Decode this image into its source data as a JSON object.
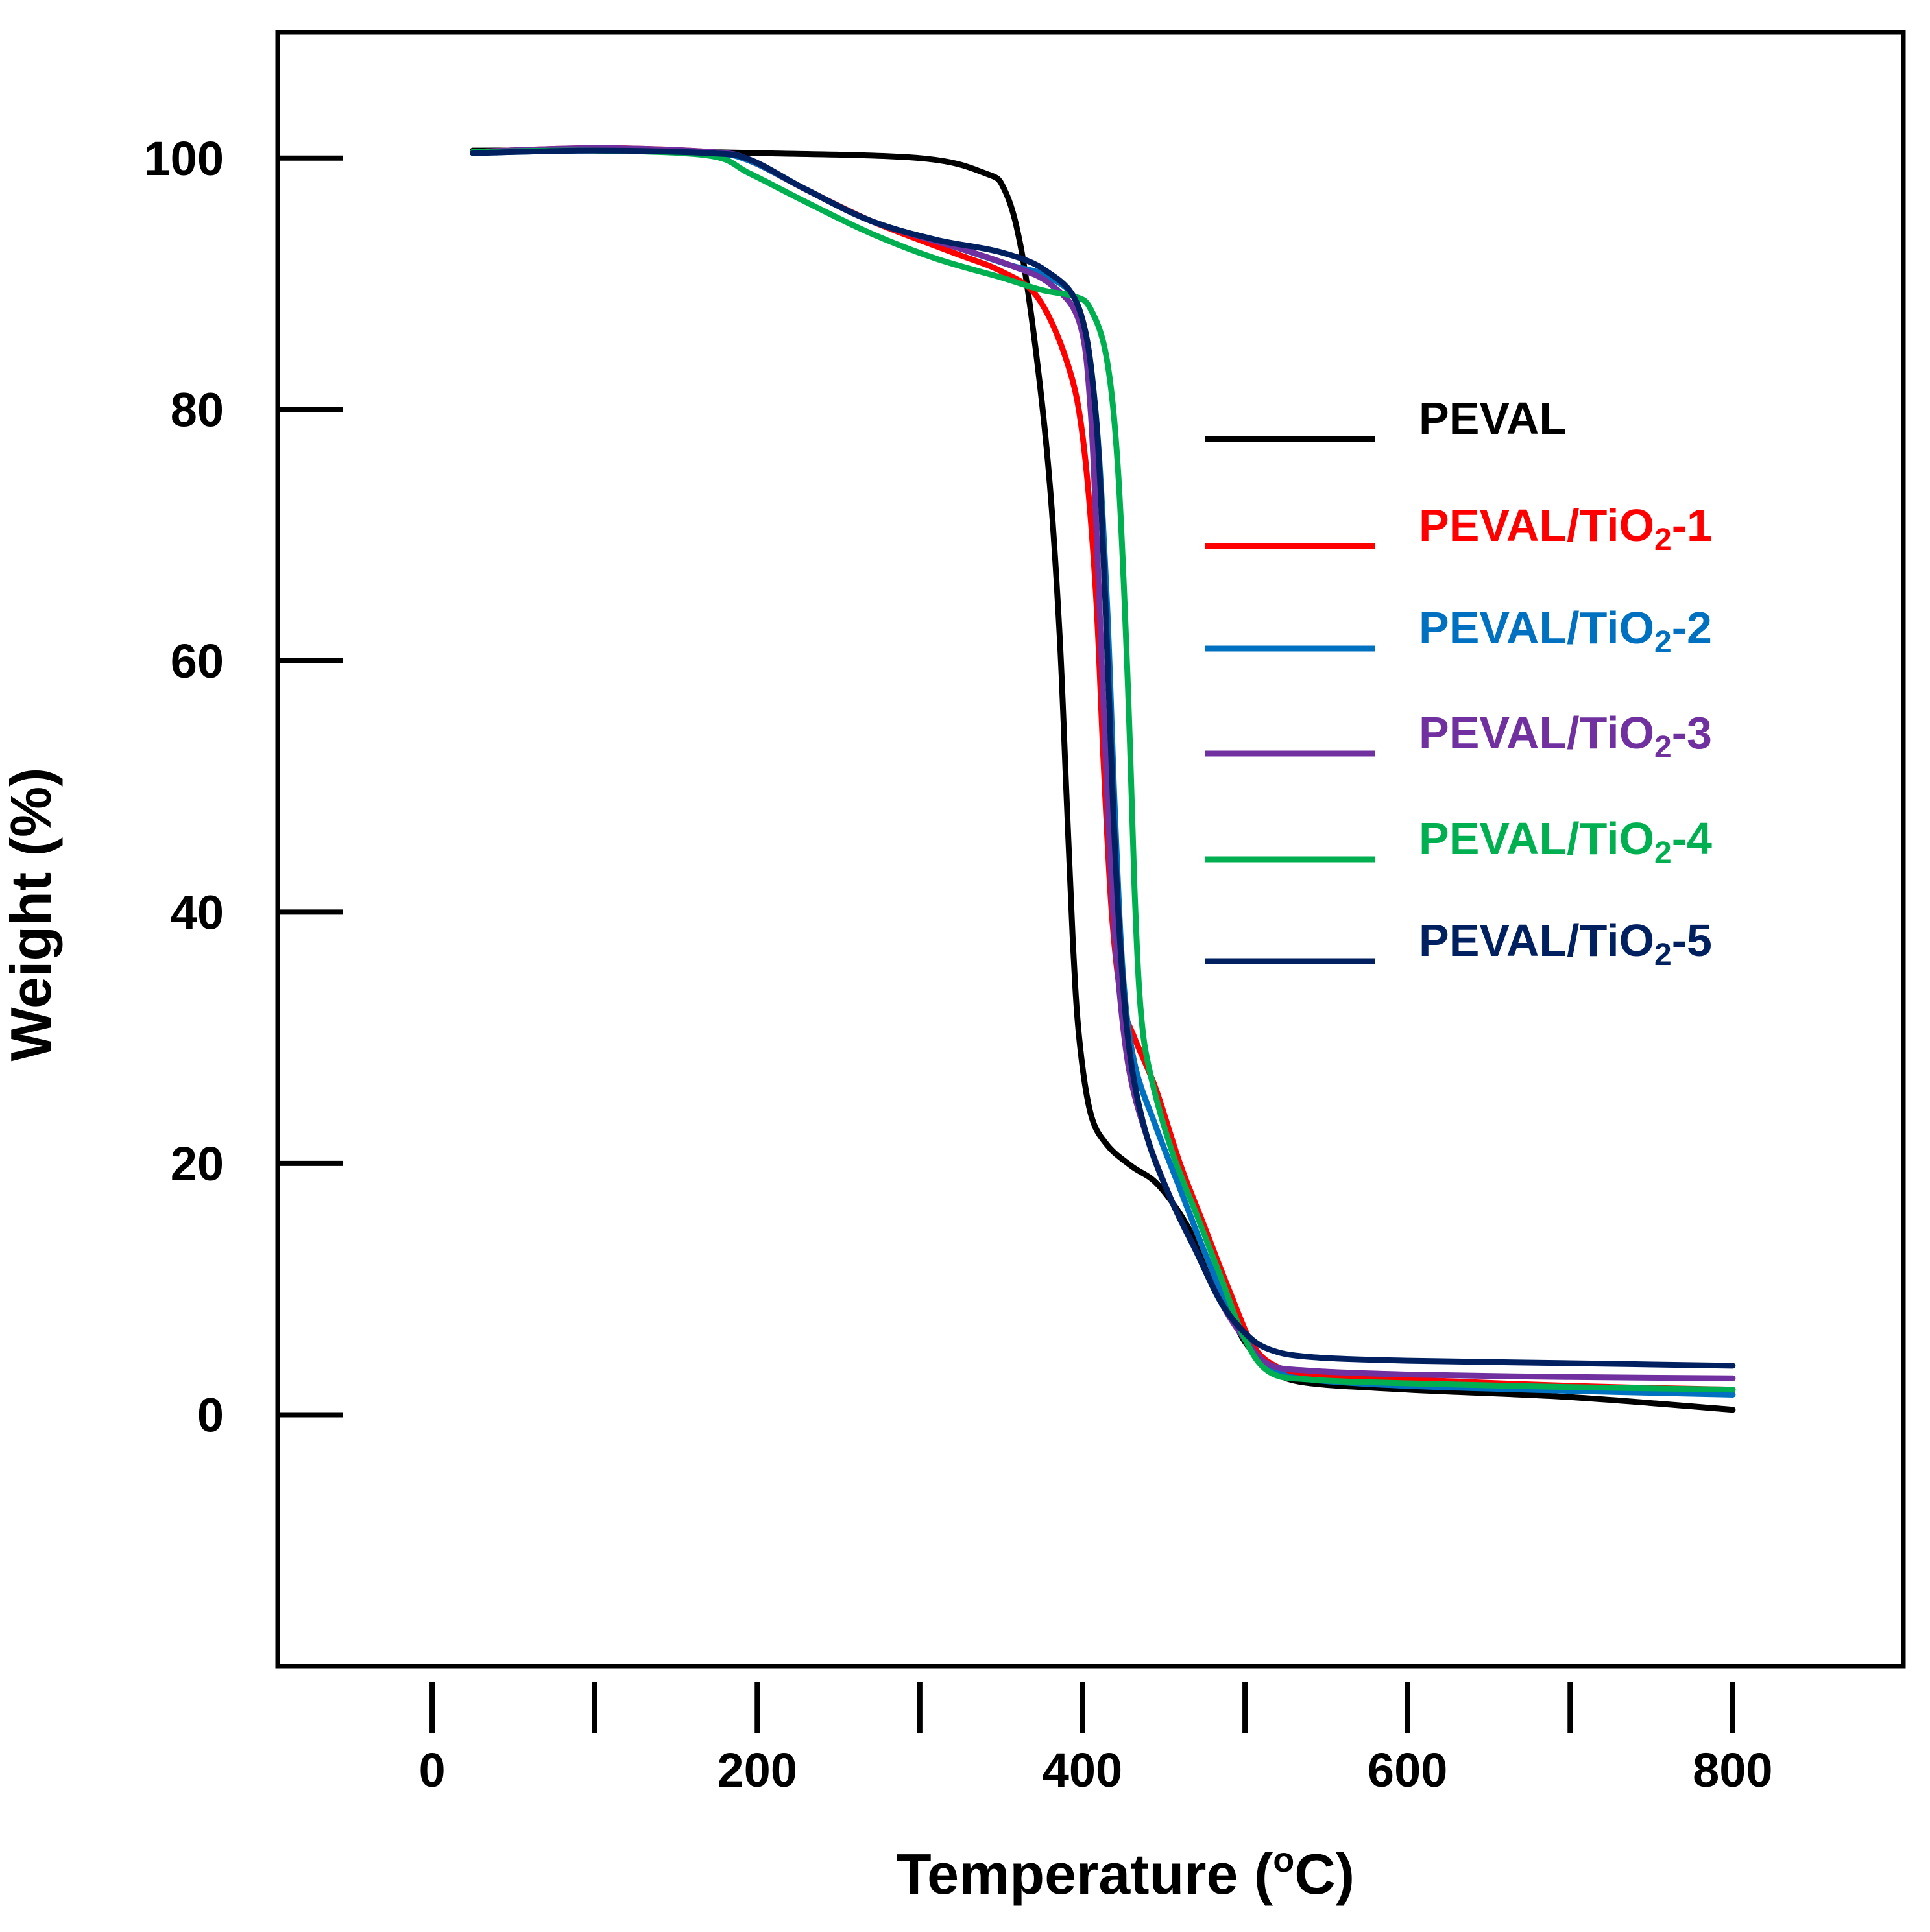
{
  "chart_data": {
    "type": "line",
    "title": "",
    "xlabel_main": "Temperature (",
    "xlabel_sup": "o",
    "xlabel_end": "C)",
    "ylabel": "Weight (%)",
    "xlim": [
      -95,
      905
    ],
    "ylim": [
      -20,
      110
    ],
    "xticks": [
      0,
      200,
      400,
      600,
      800
    ],
    "xticks_minor": [
      100,
      300,
      500,
      700
    ],
    "yticks": [
      0,
      20,
      40,
      60,
      80,
      100
    ],
    "grid": false,
    "legend_position": "right",
    "series": [
      {
        "name": "PEVAL",
        "label_main": "PEVAL",
        "label_sub": "",
        "label_end": "",
        "color": "#000000",
        "points": [
          [
            25,
            100.6
          ],
          [
            100,
            100.6
          ],
          [
            200,
            100.4
          ],
          [
            300,
            100.0
          ],
          [
            340,
            98.8
          ],
          [
            352,
            97.5
          ],
          [
            362,
            93
          ],
          [
            372,
            84
          ],
          [
            380,
            74
          ],
          [
            386,
            62
          ],
          [
            390,
            50
          ],
          [
            394,
            38
          ],
          [
            398,
            30
          ],
          [
            405,
            24
          ],
          [
            415,
            21.5
          ],
          [
            430,
            19.8
          ],
          [
            445,
            18.5
          ],
          [
            460,
            16
          ],
          [
            475,
            12.5
          ],
          [
            490,
            8.5
          ],
          [
            500,
            5.8
          ],
          [
            515,
            3.8
          ],
          [
            535,
            2.6
          ],
          [
            600,
            2.0
          ],
          [
            700,
            1.4
          ],
          [
            800,
            0.4
          ]
        ]
      },
      {
        "name": "PEVAL/TiO2-1",
        "label_main": "PEVAL/TiO",
        "label_sub": "2",
        "label_end": "-1",
        "color": "#ff0000",
        "points": [
          [
            25,
            100.5
          ],
          [
            100,
            100.8
          ],
          [
            170,
            100.5
          ],
          [
            195,
            99.8
          ],
          [
            230,
            97.5
          ],
          [
            270,
            95
          ],
          [
            320,
            92.5
          ],
          [
            350,
            91
          ],
          [
            372,
            89
          ],
          [
            390,
            84
          ],
          [
            400,
            78
          ],
          [
            408,
            66
          ],
          [
            413,
            52
          ],
          [
            418,
            40
          ],
          [
            424,
            33
          ],
          [
            432,
            30
          ],
          [
            445,
            26
          ],
          [
            460,
            20
          ],
          [
            475,
            15
          ],
          [
            490,
            10
          ],
          [
            505,
            5.5
          ],
          [
            520,
            3.8
          ],
          [
            540,
            3.2
          ],
          [
            600,
            2.8
          ],
          [
            700,
            2.3
          ],
          [
            800,
            2.0
          ]
        ]
      },
      {
        "name": "PEVAL/TiO2-2",
        "label_main": "PEVAL/TiO",
        "label_sub": "2",
        "label_end": "-2",
        "color": "#0070c0",
        "points": [
          [
            25,
            100.4
          ],
          [
            100,
            100.6
          ],
          [
            170,
            100.4
          ],
          [
            195,
            99.8
          ],
          [
            230,
            97.5
          ],
          [
            270,
            95
          ],
          [
            320,
            93
          ],
          [
            355,
            91.5
          ],
          [
            380,
            90.5
          ],
          [
            398,
            88
          ],
          [
            408,
            80
          ],
          [
            415,
            65
          ],
          [
            420,
            48
          ],
          [
            425,
            35
          ],
          [
            432,
            28
          ],
          [
            445,
            23
          ],
          [
            460,
            18
          ],
          [
            475,
            13
          ],
          [
            490,
            8.5
          ],
          [
            505,
            5
          ],
          [
            520,
            3.4
          ],
          [
            540,
            2.8
          ],
          [
            600,
            2.3
          ],
          [
            700,
            1.9
          ],
          [
            800,
            1.6
          ]
        ]
      },
      {
        "name": "PEVAL/TiO2-3",
        "label_main": "PEVAL/TiO",
        "label_sub": "2",
        "label_end": "-3",
        "color": "#7030a0",
        "points": [
          [
            25,
            100.5
          ],
          [
            100,
            100.8
          ],
          [
            170,
            100.5
          ],
          [
            195,
            99.9
          ],
          [
            230,
            97.5
          ],
          [
            270,
            95
          ],
          [
            320,
            93
          ],
          [
            355,
            91.5
          ],
          [
            380,
            90
          ],
          [
            398,
            87
          ],
          [
            405,
            80
          ],
          [
            410,
            66
          ],
          [
            415,
            50
          ],
          [
            420,
            38
          ],
          [
            428,
            28
          ],
          [
            440,
            22
          ],
          [
            455,
            17
          ],
          [
            470,
            13
          ],
          [
            485,
            9
          ],
          [
            500,
            6
          ],
          [
            515,
            4
          ],
          [
            540,
            3.5
          ],
          [
            600,
            3.2
          ],
          [
            700,
            3.0
          ],
          [
            800,
            2.9
          ]
        ]
      },
      {
        "name": "PEVAL/TiO2-4",
        "label_main": "PEVAL/TiO",
        "label_sub": "2",
        "label_end": "-4",
        "color": "#00b050",
        "points": [
          [
            25,
            100.5
          ],
          [
            100,
            100.6
          ],
          [
            170,
            100.2
          ],
          [
            195,
            98.8
          ],
          [
            230,
            96.5
          ],
          [
            270,
            94
          ],
          [
            310,
            92
          ],
          [
            350,
            90.5
          ],
          [
            375,
            89.5
          ],
          [
            395,
            89
          ],
          [
            405,
            88
          ],
          [
            415,
            84
          ],
          [
            422,
            75
          ],
          [
            428,
            58
          ],
          [
            432,
            42
          ],
          [
            436,
            32
          ],
          [
            442,
            27
          ],
          [
            455,
            21
          ],
          [
            470,
            16
          ],
          [
            485,
            11
          ],
          [
            500,
            6
          ],
          [
            515,
            3.4
          ],
          [
            540,
            2.8
          ],
          [
            600,
            2.5
          ],
          [
            700,
            2.2
          ],
          [
            800,
            2.0
          ]
        ]
      },
      {
        "name": "PEVAL/TiO2-5",
        "label_main": "PEVAL/TiO",
        "label_sub": "2",
        "label_end": "-5",
        "color": "#002060",
        "points": [
          [
            25,
            100.4
          ],
          [
            100,
            100.6
          ],
          [
            170,
            100.4
          ],
          [
            195,
            99.9
          ],
          [
            230,
            97.5
          ],
          [
            270,
            95
          ],
          [
            310,
            93.5
          ],
          [
            350,
            92.5
          ],
          [
            378,
            91
          ],
          [
            398,
            88
          ],
          [
            408,
            80
          ],
          [
            414,
            65
          ],
          [
            419,
            48
          ],
          [
            424,
            36
          ],
          [
            430,
            28
          ],
          [
            440,
            22
          ],
          [
            455,
            17
          ],
          [
            470,
            13
          ],
          [
            485,
            9
          ],
          [
            500,
            6.5
          ],
          [
            515,
            5.2
          ],
          [
            540,
            4.6
          ],
          [
            600,
            4.3
          ],
          [
            700,
            4.1
          ],
          [
            800,
            3.9
          ]
        ]
      }
    ]
  }
}
